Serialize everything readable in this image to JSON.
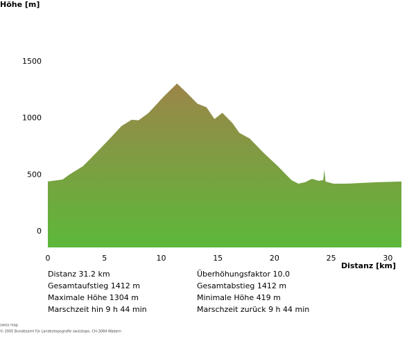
{
  "chart_data": {
    "type": "area",
    "y_label": "Höhe [m]",
    "x_label": "Distanz [km]",
    "x": [
      0,
      1.3,
      1.9,
      3.1,
      4.3,
      5.6,
      6.5,
      7.4,
      8.0,
      8.9,
      10.2,
      11.4,
      12.3,
      13.2,
      14.0,
      14.7,
      15.4,
      16.3,
      16.9,
      17.8,
      19.0,
      20.3,
      21.5,
      22.1,
      22.7,
      23.3,
      23.9,
      24.3,
      24.4,
      24.5,
      25.2,
      26.4,
      27.6,
      29.1,
      31.2
    ],
    "values": [
      442,
      460,
      503,
      577,
      699,
      834,
      933,
      988,
      982,
      1049,
      1190,
      1307,
      1221,
      1129,
      1098,
      994,
      1049,
      957,
      871,
      822,
      699,
      577,
      454,
      423,
      436,
      466,
      448,
      454,
      546,
      442,
      423,
      423,
      429,
      436,
      442
    ],
    "colors": [
      "#9c8549",
      "#5cb83a"
    ],
    "xlim": [
      0,
      31.2
    ],
    "ylim": [
      -140,
      1500
    ],
    "xticks": [
      0,
      5,
      10,
      15,
      20,
      25,
      30
    ],
    "yticks": [
      0,
      500,
      1000,
      1500
    ]
  },
  "stats": [
    [
      "Distanz 31.2 km",
      "Überhöhungsfaktor 10.0"
    ],
    [
      "Gesamtaufstieg  1412 m",
      "Gesamtabstieg  1412 m"
    ],
    [
      "Maximale Höhe  1304 m",
      "Minimale Höhe  419 m"
    ],
    [
      "Marschzeit hin  9 h 44 min",
      "Marschzeit zurück  9 h 44 min"
    ]
  ],
  "footer": [
    "swiss map",
    "© 2005 Bundesamt für Landestopografie swisstopo, CH-3084 Wabern"
  ]
}
